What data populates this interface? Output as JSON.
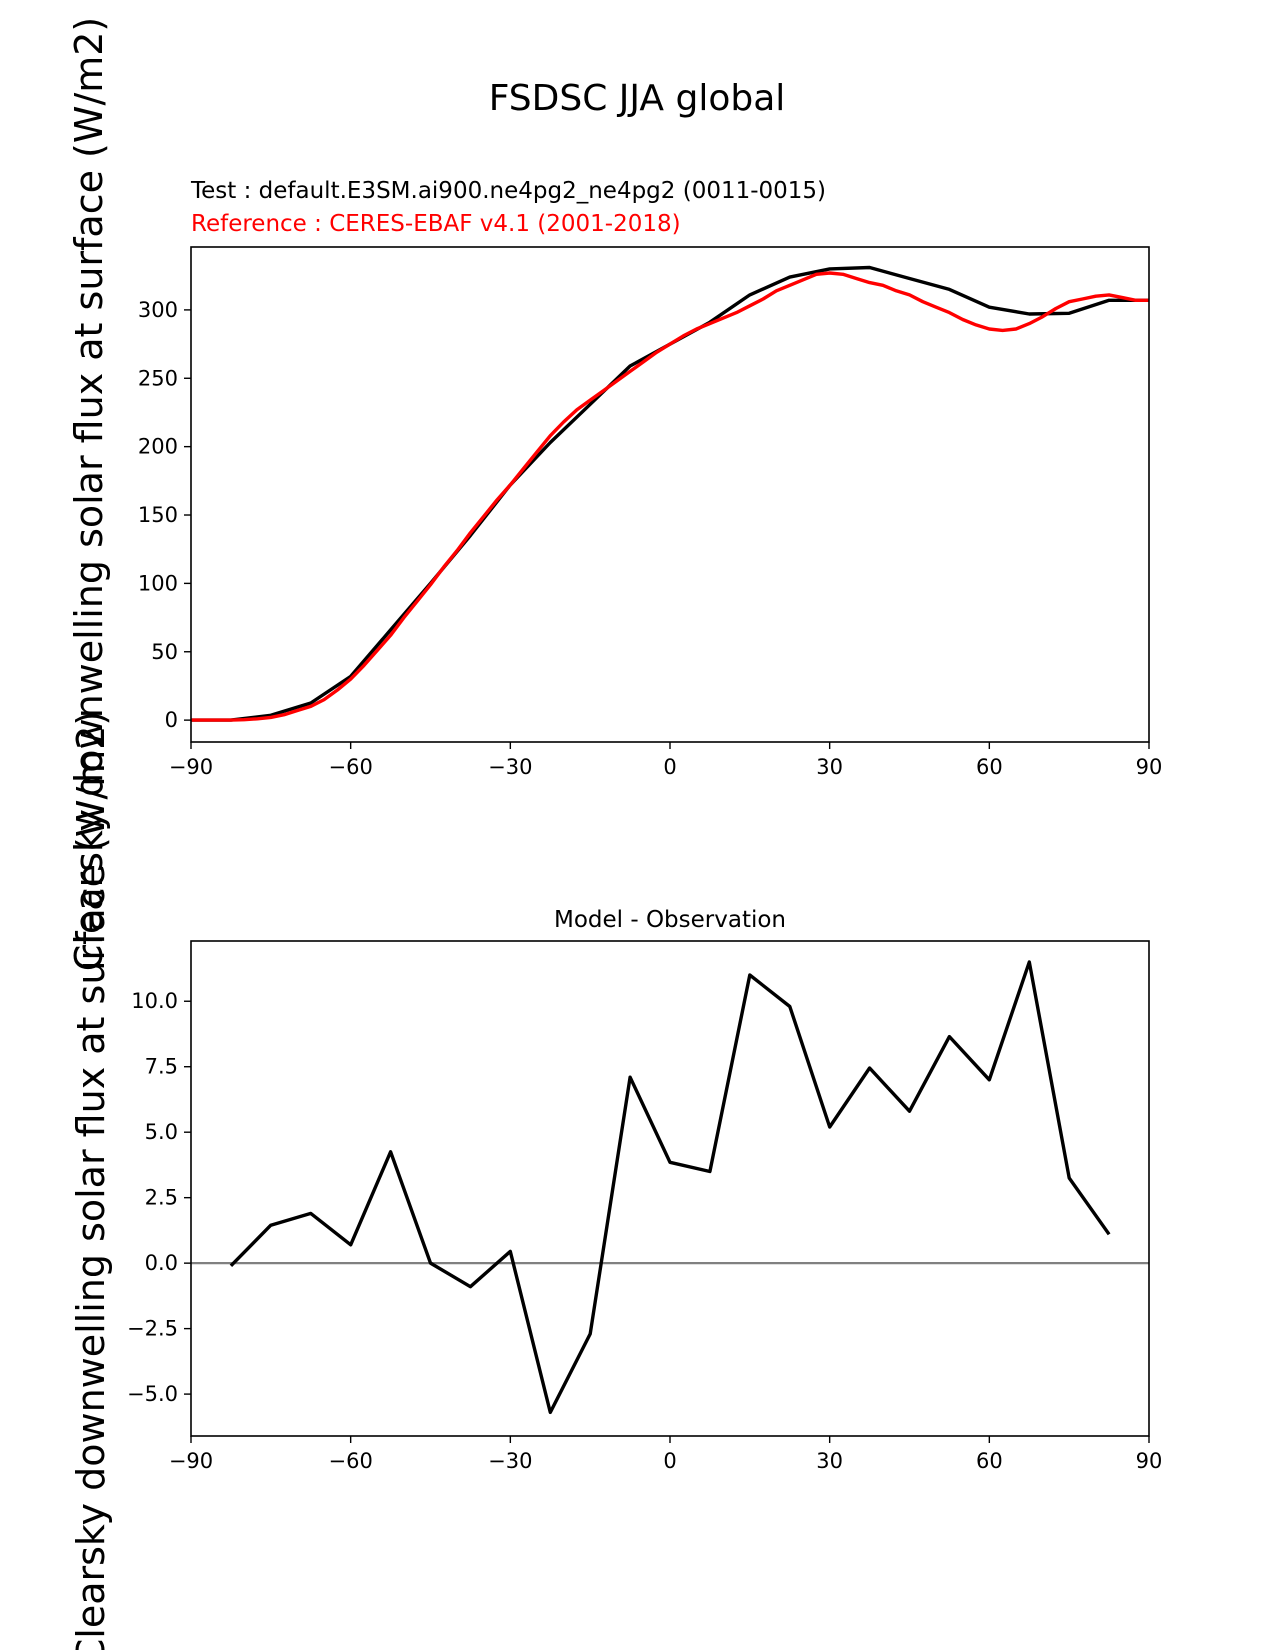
{
  "figure": {
    "title": "FSDSC JJA global"
  },
  "colors": {
    "test": "#000000",
    "reference": "#ff0000",
    "zero_line": "#808080"
  },
  "chart_data": [
    {
      "type": "line",
      "test_label": "Test : default.E3SM.ai900.ne4pg2_ne4pg2 (0011-0015)",
      "reference_label": "Reference : CERES-EBAF v4.1 (2001-2018)",
      "ylabel": "Clearsky downwelling solar flux at surface (W/m2)",
      "xlabel": "",
      "xlim": [
        -90,
        90
      ],
      "ylim": [
        -16,
        346
      ],
      "xticks": [
        -90,
        -60,
        -30,
        0,
        30,
        60,
        90
      ],
      "xtick_labels": [
        "−90",
        "−60",
        "−30",
        "0",
        "30",
        "60",
        "90"
      ],
      "yticks": [
        0,
        50,
        100,
        150,
        200,
        250,
        300
      ],
      "ytick_labels": [
        "0",
        "50",
        "100",
        "150",
        "200",
        "250",
        "300"
      ],
      "grid": false,
      "series": [
        {
          "name": "Test : default.E3SM.ai900.ne4pg2_ne4pg2 (0011-0015)",
          "color": "#000000",
          "x": [
            -90,
            -82.5,
            -75,
            -67.5,
            -60,
            -52.5,
            -45,
            -37.5,
            -30,
            -22.5,
            -15,
            -7.5,
            0,
            7.5,
            15,
            22.5,
            30,
            37.5,
            45,
            52.5,
            60,
            67.5,
            75,
            82.5,
            90
          ],
          "y": [
            0,
            0,
            3.5,
            12.5,
            32,
            66,
            100,
            135,
            172,
            203,
            231,
            259,
            275,
            291,
            311,
            324,
            330,
            331,
            323,
            315,
            302,
            297,
            297.5,
            307,
            307
          ]
        },
        {
          "name": "Reference : CERES-EBAF v4.1 (2001-2018)",
          "color": "#ff0000",
          "x": [
            -90,
            -82.5,
            -80,
            -77.5,
            -75,
            -72.5,
            -70,
            -67.5,
            -65,
            -62.5,
            -60,
            -57.5,
            -55,
            -52.5,
            -50,
            -47.5,
            -45,
            -42.5,
            -40,
            -37.5,
            -35,
            -32.5,
            -30,
            -27.5,
            -25,
            -22.5,
            -20,
            -17.5,
            -15,
            -12.5,
            -10,
            -7.5,
            -5,
            -2.5,
            0,
            2.5,
            5,
            7.5,
            10,
            12.5,
            15,
            17.5,
            20,
            22.5,
            25,
            27.5,
            30,
            32.5,
            35,
            37.5,
            40,
            42.5,
            45,
            47.5,
            50,
            52.5,
            55,
            57.5,
            60,
            62.5,
            65,
            67.5,
            70,
            72.5,
            75,
            77.5,
            80,
            82.5,
            85,
            87.5,
            90
          ],
          "y": [
            0,
            0,
            0.3,
            1,
            2,
            4,
            7,
            10,
            15,
            22,
            30,
            40,
            51,
            62,
            75,
            87,
            99,
            112,
            124,
            137,
            149,
            161,
            172,
            184,
            196,
            208,
            218,
            227,
            234,
            241,
            248,
            255,
            262,
            269,
            275,
            281,
            286,
            290,
            294,
            298,
            303,
            308,
            314,
            318,
            322,
            326,
            327,
            326,
            323,
            320,
            318,
            314,
            311,
            306,
            302,
            298,
            293,
            289,
            286,
            285,
            286,
            290,
            295,
            301,
            306,
            308,
            310,
            311,
            309,
            307,
            307
          ]
        }
      ]
    },
    {
      "type": "line",
      "title": "Model - Observation",
      "xlabel": "",
      "ylabel": "Clearsky downwelling solar flux at surface (W/m2)",
      "xlim": [
        -90,
        90
      ],
      "ylim": [
        -6.6,
        12.3
      ],
      "xticks": [
        -90,
        -60,
        -30,
        0,
        30,
        60,
        90
      ],
      "xtick_labels": [
        "−90",
        "−60",
        "−30",
        "0",
        "30",
        "60",
        "90"
      ],
      "yticks": [
        -5,
        -2.5,
        0,
        2.5,
        5,
        7.5,
        10
      ],
      "ytick_labels": [
        "−5.0",
        "−2.5",
        "0.0",
        "2.5",
        "5.0",
        "7.5",
        "10.0"
      ],
      "grid": false,
      "zero_line": true,
      "series": [
        {
          "name": "",
          "color": "#000000",
          "x": [
            -82.5,
            -75,
            -67.5,
            -60,
            -52.5,
            -45,
            -37.5,
            -30,
            -22.5,
            -15,
            -7.5,
            0,
            7.5,
            15,
            22.5,
            30,
            37.5,
            45,
            52.5,
            60,
            67.5,
            75,
            82.5
          ],
          "y": [
            -0.1,
            1.45,
            1.9,
            0.7,
            4.25,
            0,
            -0.9,
            0.45,
            -5.7,
            -2.7,
            7.1,
            3.85,
            3.5,
            11.0,
            9.8,
            5.2,
            7.45,
            5.8,
            8.65,
            7.0,
            11.5,
            3.25,
            1.1
          ]
        }
      ]
    }
  ]
}
